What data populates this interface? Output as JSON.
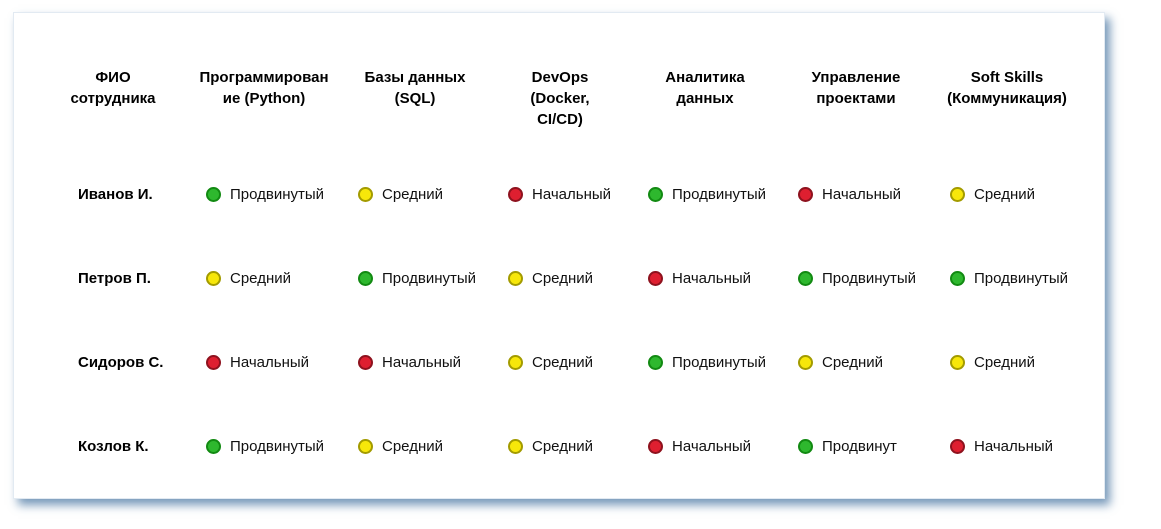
{
  "colors": {
    "card_shadow": "#4a76a2",
    "card_border": "#e2eaf2",
    "level_green_fill": "#2eb82e",
    "level_green_border": "#128a12",
    "level_yellow_fill": "#f7e70a",
    "level_yellow_border": "#a39b00",
    "level_red_fill": "#de1f30",
    "level_red_border": "#8e121e"
  },
  "chart_data": {
    "type": "table",
    "title": "",
    "columns": [
      {
        "label": "ФИО сотрудника",
        "lines": [
          "ФИО",
          "сотрудника"
        ]
      },
      {
        "label": "Программирование (Python)",
        "lines": [
          "Программирован",
          "ие (Python)"
        ]
      },
      {
        "label": "Базы данных (SQL)",
        "lines": [
          "Базы данных",
          "(SQL)"
        ]
      },
      {
        "label": "DevOps (Docker, CI/CD)",
        "lines": [
          "DevOps",
          "(Docker,",
          "CI/CD)"
        ]
      },
      {
        "label": "Аналитика данных",
        "lines": [
          "Аналитика",
          "данных"
        ]
      },
      {
        "label": "Управление проектами",
        "lines": [
          "Управление",
          "проектами"
        ]
      },
      {
        "label": "Soft Skills (Коммуникация)",
        "lines": [
          "Soft Skills",
          "(Коммуникация)"
        ]
      }
    ],
    "rows": [
      {
        "name": "Иванов И.",
        "skills": [
          {
            "level": "Продвинутый",
            "color": "green"
          },
          {
            "level": "Средний",
            "color": "yellow"
          },
          {
            "level": "Начальный",
            "color": "red"
          },
          {
            "level": "Продвинутый",
            "color": "green"
          },
          {
            "level": "Начальный",
            "color": "red"
          },
          {
            "level": "Средний",
            "color": "yellow"
          }
        ]
      },
      {
        "name": "Петров П.",
        "skills": [
          {
            "level": "Средний",
            "color": "yellow"
          },
          {
            "level": "Продвинутый",
            "color": "green"
          },
          {
            "level": "Средний",
            "color": "yellow"
          },
          {
            "level": "Начальный",
            "color": "red"
          },
          {
            "level": "Продвинутый",
            "color": "green"
          },
          {
            "level": "Продвинутый",
            "color": "green"
          }
        ]
      },
      {
        "name": "Сидоров С.",
        "skills": [
          {
            "level": "Начальный",
            "color": "red"
          },
          {
            "level": "Начальный",
            "color": "red"
          },
          {
            "level": "Средний",
            "color": "yellow"
          },
          {
            "level": "Продвинутый",
            "color": "green"
          },
          {
            "level": "Средний",
            "color": "yellow"
          },
          {
            "level": "Средний",
            "color": "yellow"
          }
        ]
      },
      {
        "name": "Козлов К.",
        "skills": [
          {
            "level": "Продвинутый",
            "color": "green"
          },
          {
            "level": "Средний",
            "color": "yellow"
          },
          {
            "level": "Средний",
            "color": "yellow"
          },
          {
            "level": "Начальный",
            "color": "red"
          },
          {
            "level": "Продвинут",
            "color": "green"
          },
          {
            "level": "Начальный",
            "color": "red"
          }
        ]
      }
    ]
  }
}
